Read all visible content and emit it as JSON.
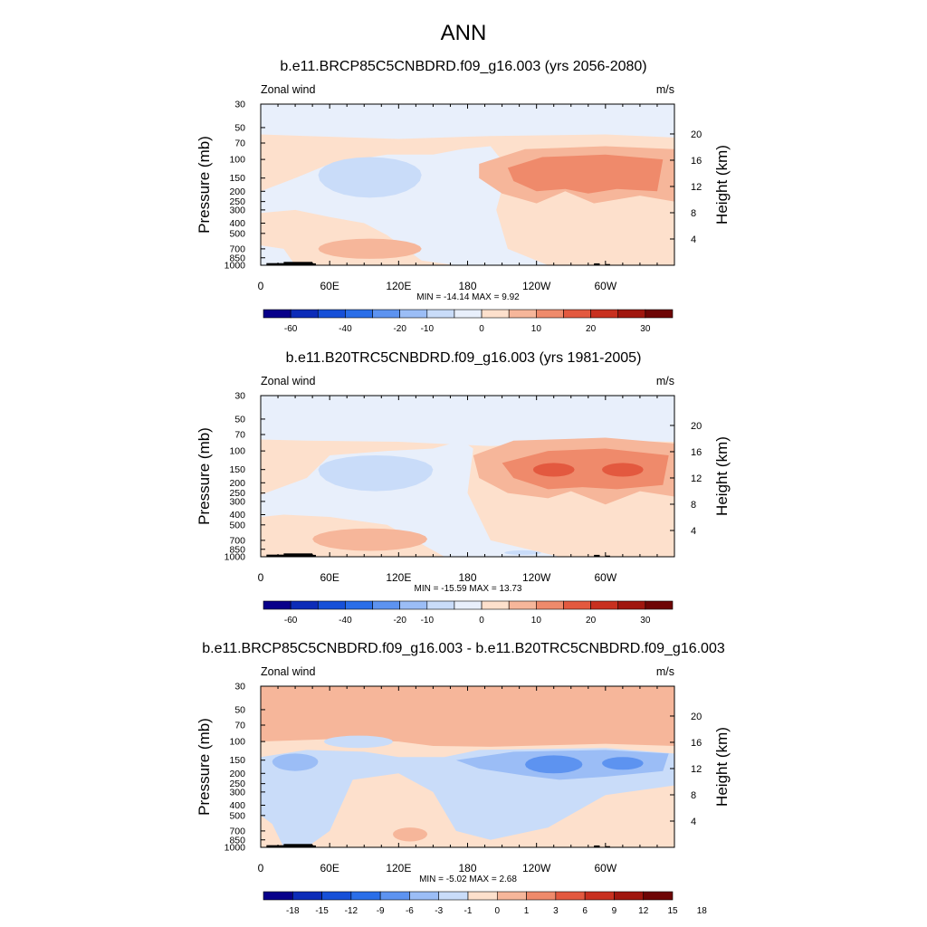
{
  "main_title": "ANN",
  "colors": {
    "abs_scale": [
      "#08008a",
      "#0c2cb8",
      "#1650d8",
      "#2a6ee8",
      "#5d93f0",
      "#9bbdf6",
      "#c9dcf9",
      "#e8effb",
      "#fde0cc",
      "#f6b69a",
      "#ef8a6b",
      "#e3593f",
      "#c8301f",
      "#a0160e",
      "#6e0505"
    ],
    "diff_scale": [
      "#08008a",
      "#0c2cb8",
      "#1650d8",
      "#2a6ee8",
      "#5d93f0",
      "#9bbdf6",
      "#c9dcf9",
      "#fde0cc",
      "#f6b69a",
      "#ef8a6b",
      "#e3593f",
      "#c8301f",
      "#a0160e",
      "#6e0505"
    ],
    "topography": "#000000"
  },
  "chart_data": [
    {
      "type": "heatmap",
      "title": "b.e11.BRCP85C5CNBDRD.f09_g16.003 (yrs 2056-2080)",
      "left_label": "Zonal wind",
      "right_label": "m/s",
      "ylabel": "Pressure (mb)",
      "ylabel_right": "Height (km)",
      "x_ticks": [
        "0",
        "60E",
        "120E",
        "180",
        "120W",
        "60W"
      ],
      "x_range": [
        0,
        360
      ],
      "y_ticks": [
        "30",
        "50",
        "70",
        "100",
        "150",
        "200",
        "250",
        "300",
        "400",
        "500",
        "700",
        "850",
        "1000"
      ],
      "y_range_mb": [
        30,
        1000
      ],
      "y_log_scale": true,
      "height_ticks": [
        "20",
        "16",
        "12",
        "8",
        "4"
      ],
      "stats": "MIN = -14.14  MAX =   9.92",
      "min": -14.14,
      "max": 9.92,
      "colorbar_labels": [
        "-60",
        "-40",
        "-20",
        "-10",
        "0",
        "10",
        "20",
        "30"
      ],
      "features": [
        {
          "region": "stratosphere 30-60 mb, all longitudes",
          "value_range": "-5 to 0"
        },
        {
          "region": "upper troposphere 80-200 mb, 50E-140E",
          "value_range": "-10 to -5"
        },
        {
          "region": "upper troposphere 80-200 mb, 220E-330E",
          "value_range": "5 to 10"
        },
        {
          "region": "central Pacific 150E-200E, 70-1000 mb",
          "value_range": "-5 to 0"
        },
        {
          "region": "lower troposphere 600-900 mb, 40E-140E",
          "value_range": "0 to 5"
        }
      ]
    },
    {
      "type": "heatmap",
      "title": "b.e11.B20TRC5CNBDRD.f09_g16.003 (yrs 1981-2005)",
      "left_label": "Zonal wind",
      "right_label": "m/s",
      "ylabel": "Pressure (mb)",
      "ylabel_right": "Height (km)",
      "x_ticks": [
        "0",
        "60E",
        "120E",
        "180",
        "120W",
        "60W"
      ],
      "x_range": [
        0,
        360
      ],
      "y_ticks": [
        "30",
        "50",
        "70",
        "100",
        "150",
        "200",
        "250",
        "300",
        "400",
        "500",
        "700",
        "850",
        "1000"
      ],
      "y_range_mb": [
        30,
        1000
      ],
      "y_log_scale": true,
      "height_ticks": [
        "20",
        "16",
        "12",
        "8",
        "4"
      ],
      "stats": "MIN = -15.59  MAX =  13.73",
      "min": -15.59,
      "max": 13.73,
      "colorbar_labels": [
        "-60",
        "-40",
        "-20",
        "-10",
        "0",
        "10",
        "20",
        "30"
      ],
      "features": [
        {
          "region": "stratosphere 30-70 mb, all longitudes",
          "value_range": "-5 to 0"
        },
        {
          "region": "upper troposphere 100-250 mb, 50E-140E",
          "value_range": "-10 to -5"
        },
        {
          "region": "upper troposphere 110-200 mb, 230E-320E",
          "value_range": "10 to 15"
        },
        {
          "region": "lower troposphere 600-900 mb, 40E-140E",
          "value_range": "0 to 5"
        }
      ]
    },
    {
      "type": "heatmap",
      "title": "b.e11.BRCP85C5CNBDRD.f09_g16.003 - b.e11.B20TRC5CNBDRD.f09_g16.003",
      "left_label": "Zonal wind",
      "right_label": "m/s",
      "ylabel": "Pressure (mb)",
      "ylabel_right": "Height (km)",
      "x_ticks": [
        "0",
        "60E",
        "120E",
        "180",
        "120W",
        "60W"
      ],
      "x_range": [
        0,
        360
      ],
      "y_ticks": [
        "30",
        "50",
        "70",
        "100",
        "150",
        "200",
        "250",
        "300",
        "400",
        "500",
        "700",
        "850",
        "1000"
      ],
      "y_range_mb": [
        30,
        1000
      ],
      "y_log_scale": true,
      "height_ticks": [
        "20",
        "16",
        "12",
        "8",
        "4"
      ],
      "stats": "MIN = -5.02  MAX =   2.68",
      "min": -5.02,
      "max": 2.68,
      "colorbar_labels": [
        "-18",
        "-15",
        "-12",
        "-9",
        "-6",
        "-3",
        "-1",
        "0",
        "1",
        "3",
        "6",
        "9",
        "12",
        "15",
        "18"
      ],
      "features": [
        {
          "region": "stratosphere 30-100 mb, all longitudes",
          "value_range": "1 to 3"
        },
        {
          "region": "upper troposphere 120-200 mb, 150E-330E",
          "value_range": "-3 to -1"
        },
        {
          "region": "upper troposphere 130-200 mb, 230E-320E",
          "value_range": "-6 to -3"
        },
        {
          "region": "mid troposphere 300-900 mb, 190E-360E",
          "value_range": "-1 to 0"
        }
      ]
    }
  ]
}
